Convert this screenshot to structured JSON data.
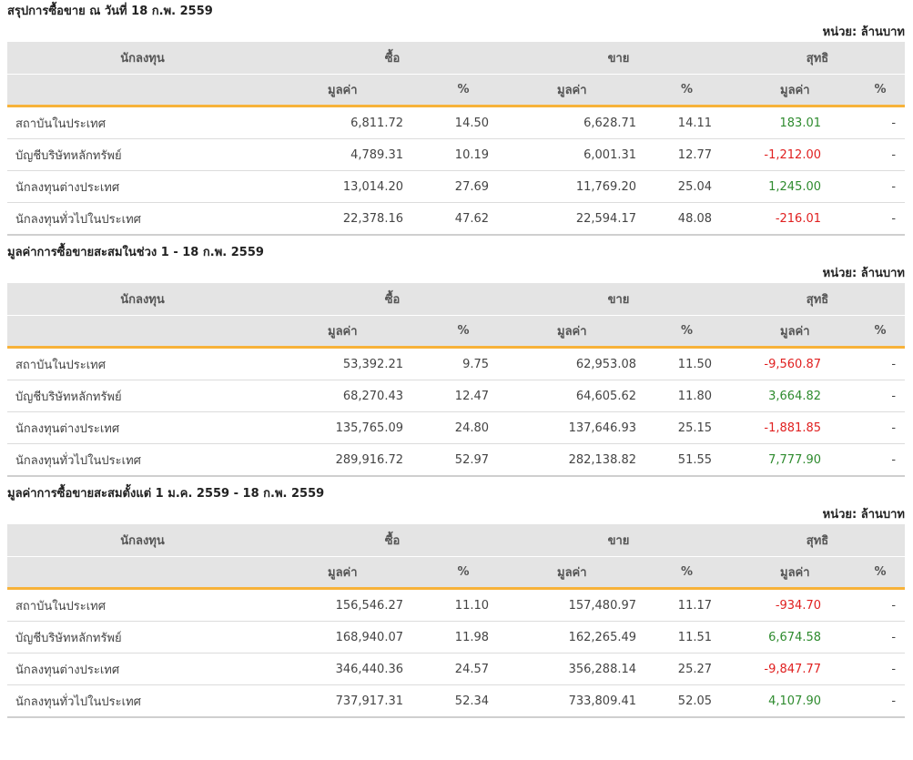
{
  "unit_label": "หน่วย: ล้านบาท",
  "headers": {
    "investor": "นักลงทุน",
    "buy": "ซื้อ",
    "sell": "ขาย",
    "net": "สุทธิ",
    "value": "มูลค่า",
    "percent": "%"
  },
  "colors": {
    "accent": "#f7b239",
    "positive": "#2e8b2e",
    "negative": "#e02020",
    "header_bg": "#e4e4e4"
  },
  "sections": [
    {
      "title": "สรุปการซื้อขาย ณ วันที่ 18 ก.พ. 2559",
      "rows": [
        {
          "name": "สถาบันในประเทศ",
          "buy": "6,811.72",
          "buy_pct": "14.50",
          "sell": "6,628.71",
          "sell_pct": "14.11",
          "net": "183.01",
          "net_sign": "pos",
          "net_pct": "-"
        },
        {
          "name": "บัญชีบริษัทหลักทรัพย์",
          "buy": "4,789.31",
          "buy_pct": "10.19",
          "sell": "6,001.31",
          "sell_pct": "12.77",
          "net": "-1,212.00",
          "net_sign": "neg",
          "net_pct": "-"
        },
        {
          "name": "นักลงทุนต่างประเทศ",
          "buy": "13,014.20",
          "buy_pct": "27.69",
          "sell": "11,769.20",
          "sell_pct": "25.04",
          "net": "1,245.00",
          "net_sign": "pos",
          "net_pct": "-"
        },
        {
          "name": "นักลงทุนทั่วไปในประเทศ",
          "buy": "22,378.16",
          "buy_pct": "47.62",
          "sell": "22,594.17",
          "sell_pct": "48.08",
          "net": "-216.01",
          "net_sign": "neg",
          "net_pct": "-"
        }
      ]
    },
    {
      "title": "มูลค่าการซื้อขายสะสมในช่วง 1 - 18 ก.พ. 2559",
      "rows": [
        {
          "name": "สถาบันในประเทศ",
          "buy": "53,392.21",
          "buy_pct": "9.75",
          "sell": "62,953.08",
          "sell_pct": "11.50",
          "net": "-9,560.87",
          "net_sign": "neg",
          "net_pct": "-"
        },
        {
          "name": "บัญชีบริษัทหลักทรัพย์",
          "buy": "68,270.43",
          "buy_pct": "12.47",
          "sell": "64,605.62",
          "sell_pct": "11.80",
          "net": "3,664.82",
          "net_sign": "pos",
          "net_pct": "-"
        },
        {
          "name": "นักลงทุนต่างประเทศ",
          "buy": "135,765.09",
          "buy_pct": "24.80",
          "sell": "137,646.93",
          "sell_pct": "25.15",
          "net": "-1,881.85",
          "net_sign": "neg",
          "net_pct": "-"
        },
        {
          "name": "นักลงทุนทั่วไปในประเทศ",
          "buy": "289,916.72",
          "buy_pct": "52.97",
          "sell": "282,138.82",
          "sell_pct": "51.55",
          "net": "7,777.90",
          "net_sign": "pos",
          "net_pct": "-"
        }
      ]
    },
    {
      "title": "มูลค่าการซื้อขายสะสมตั้งแต่ 1 ม.ค. 2559 - 18 ก.พ. 2559",
      "rows": [
        {
          "name": "สถาบันในประเทศ",
          "buy": "156,546.27",
          "buy_pct": "11.10",
          "sell": "157,480.97",
          "sell_pct": "11.17",
          "net": "-934.70",
          "net_sign": "neg",
          "net_pct": "-"
        },
        {
          "name": "บัญชีบริษัทหลักทรัพย์",
          "buy": "168,940.07",
          "buy_pct": "11.98",
          "sell": "162,265.49",
          "sell_pct": "11.51",
          "net": "6,674.58",
          "net_sign": "pos",
          "net_pct": "-"
        },
        {
          "name": "นักลงทุนต่างประเทศ",
          "buy": "346,440.36",
          "buy_pct": "24.57",
          "sell": "356,288.14",
          "sell_pct": "25.27",
          "net": "-9,847.77",
          "net_sign": "neg",
          "net_pct": "-"
        },
        {
          "name": "นักลงทุนทั่วไปในประเทศ",
          "buy": "737,917.31",
          "buy_pct": "52.34",
          "sell": "733,809.41",
          "sell_pct": "52.05",
          "net": "4,107.90",
          "net_sign": "pos",
          "net_pct": "-"
        }
      ]
    }
  ]
}
